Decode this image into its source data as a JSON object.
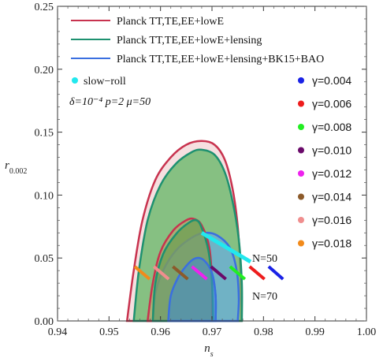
{
  "chart_data": {
    "type": "scatter",
    "xlabel": "n_s",
    "ylabel": "r_0.002",
    "xlim": [
      0.94,
      1.0
    ],
    "ylim": [
      0.0,
      0.25
    ],
    "xticks": [
      "0.94",
      "0.95",
      "0.96",
      "0.97",
      "0.98",
      "0.99",
      "1.00"
    ],
    "yticks": [
      "0.00",
      "0.05",
      "0.10",
      "0.15",
      "0.20",
      "0.25"
    ],
    "contours": [
      {
        "name": "Planck TT,TE,EE+lowE",
        "color": "#c8334f",
        "fill": "#f3d4d6",
        "outer": [
          [
            0.9535,
            0.0
          ],
          [
            0.9548,
            0.04
          ],
          [
            0.9565,
            0.08
          ],
          [
            0.959,
            0.112
          ],
          [
            0.962,
            0.13
          ],
          [
            0.965,
            0.14
          ],
          [
            0.968,
            0.143
          ],
          [
            0.9705,
            0.14
          ],
          [
            0.9725,
            0.128
          ],
          [
            0.974,
            0.105
          ],
          [
            0.975,
            0.075
          ],
          [
            0.9755,
            0.04
          ],
          [
            0.9757,
            0.0
          ]
        ],
        "inner": [
          [
            0.9575,
            0.0
          ],
          [
            0.9585,
            0.03
          ],
          [
            0.96,
            0.055
          ],
          [
            0.9625,
            0.072
          ],
          [
            0.965,
            0.08
          ],
          [
            0.9665,
            0.081
          ],
          [
            0.968,
            0.076
          ],
          [
            0.9695,
            0.058
          ],
          [
            0.97,
            0.03
          ],
          [
            0.97,
            0.0
          ]
        ]
      },
      {
        "name": "Planck TT,TE,EE+lowE+lensing",
        "color": "#1e9170",
        "fill": "#6ab86a",
        "outer": [
          [
            0.9548,
            0.0
          ],
          [
            0.9558,
            0.04
          ],
          [
            0.9575,
            0.08
          ],
          [
            0.96,
            0.108
          ],
          [
            0.963,
            0.125
          ],
          [
            0.966,
            0.134
          ],
          [
            0.968,
            0.136
          ],
          [
            0.9705,
            0.132
          ],
          [
            0.9725,
            0.118
          ],
          [
            0.974,
            0.095
          ],
          [
            0.9752,
            0.065
          ],
          [
            0.9758,
            0.03
          ],
          [
            0.9758,
            0.0
          ]
        ],
        "inner": [
          [
            0.9585,
            0.0
          ],
          [
            0.959,
            0.03
          ],
          [
            0.9605,
            0.053
          ],
          [
            0.963,
            0.069
          ],
          [
            0.9655,
            0.078
          ],
          [
            0.967,
            0.08
          ],
          [
            0.968,
            0.074
          ],
          [
            0.9693,
            0.056
          ],
          [
            0.97,
            0.03
          ],
          [
            0.9702,
            0.0
          ]
        ]
      },
      {
        "name": "Planck TT,TE,EE+lowE+lensing+BK15+BAO",
        "color": "#3a6fe0",
        "fill": "#6aaed6",
        "outer": [
          [
            0.9585,
            0.0
          ],
          [
            0.959,
            0.022
          ],
          [
            0.9605,
            0.04
          ],
          [
            0.963,
            0.056
          ],
          [
            0.966,
            0.066
          ],
          [
            0.9685,
            0.07
          ],
          [
            0.971,
            0.068
          ],
          [
            0.9735,
            0.058
          ],
          [
            0.9748,
            0.04
          ],
          [
            0.9752,
            0.018
          ],
          [
            0.975,
            0.0
          ]
        ],
        "inner": [
          [
            0.9615,
            0.0
          ],
          [
            0.962,
            0.02
          ],
          [
            0.9635,
            0.035
          ],
          [
            0.9655,
            0.046
          ],
          [
            0.967,
            0.05
          ],
          [
            0.9685,
            0.048
          ],
          [
            0.97,
            0.038
          ],
          [
            0.9707,
            0.02
          ],
          [
            0.9707,
            0.0
          ]
        ]
      }
    ],
    "series": [
      {
        "name": "slow−roll",
        "color": "#22e8ee",
        "segment": [
          [
            0.968,
            0.07
          ],
          [
            0.9775,
            0.047
          ]
        ]
      },
      {
        "name": "γ=0.004",
        "color": "#1a22e6",
        "segment": [
          [
            0.981,
            0.0432
          ],
          [
            0.9838,
            0.0332
          ]
        ]
      },
      {
        "name": "γ=0.006",
        "color": "#ee1c1c",
        "segment": [
          [
            0.9773,
            0.0432
          ],
          [
            0.9802,
            0.0332
          ]
        ]
      },
      {
        "name": "γ=0.008",
        "color": "#22ee22",
        "segment": [
          [
            0.9735,
            0.0432
          ],
          [
            0.9764,
            0.0332
          ]
        ]
      },
      {
        "name": "γ=0.010",
        "color": "#6a0a6a",
        "segment": [
          [
            0.9698,
            0.0432
          ],
          [
            0.9727,
            0.0332
          ]
        ]
      },
      {
        "name": "γ=0.012",
        "color": "#ee22ee",
        "segment": [
          [
            0.9661,
            0.0432
          ],
          [
            0.969,
            0.0332
          ]
        ]
      },
      {
        "name": "γ=0.014",
        "color": "#8c5a2a",
        "segment": [
          [
            0.9624,
            0.0432
          ],
          [
            0.9653,
            0.0332
          ]
        ]
      },
      {
        "name": "γ=0.016",
        "color": "#f08e8e",
        "segment": [
          [
            0.9587,
            0.0432
          ],
          [
            0.9616,
            0.0332
          ]
        ]
      },
      {
        "name": "γ=0.018",
        "color": "#f28a1a",
        "segment": [
          [
            0.955,
            0.0432
          ],
          [
            0.9579,
            0.0332
          ]
        ]
      }
    ],
    "annotations": [
      {
        "text": "N=50",
        "x": 0.9778,
        "y": 0.05
      },
      {
        "text": "N=70",
        "x": 0.9778,
        "y": 0.02
      },
      {
        "text": "δ=10⁻⁴  p=2  μ=50"
      }
    ],
    "legend_top_left": [
      "Planck TT,TE,EE+lowE",
      "Planck TT,TE,EE+lowE+lensing",
      "Planck TT,TE,EE+lowE+lensing+BK15+BAO"
    ],
    "legend_right": [
      "γ=0.004",
      "γ=0.006",
      "γ=0.008",
      "γ=0.010",
      "γ=0.012",
      "γ=0.014",
      "γ=0.016",
      "γ=0.018"
    ],
    "grid": false
  }
}
